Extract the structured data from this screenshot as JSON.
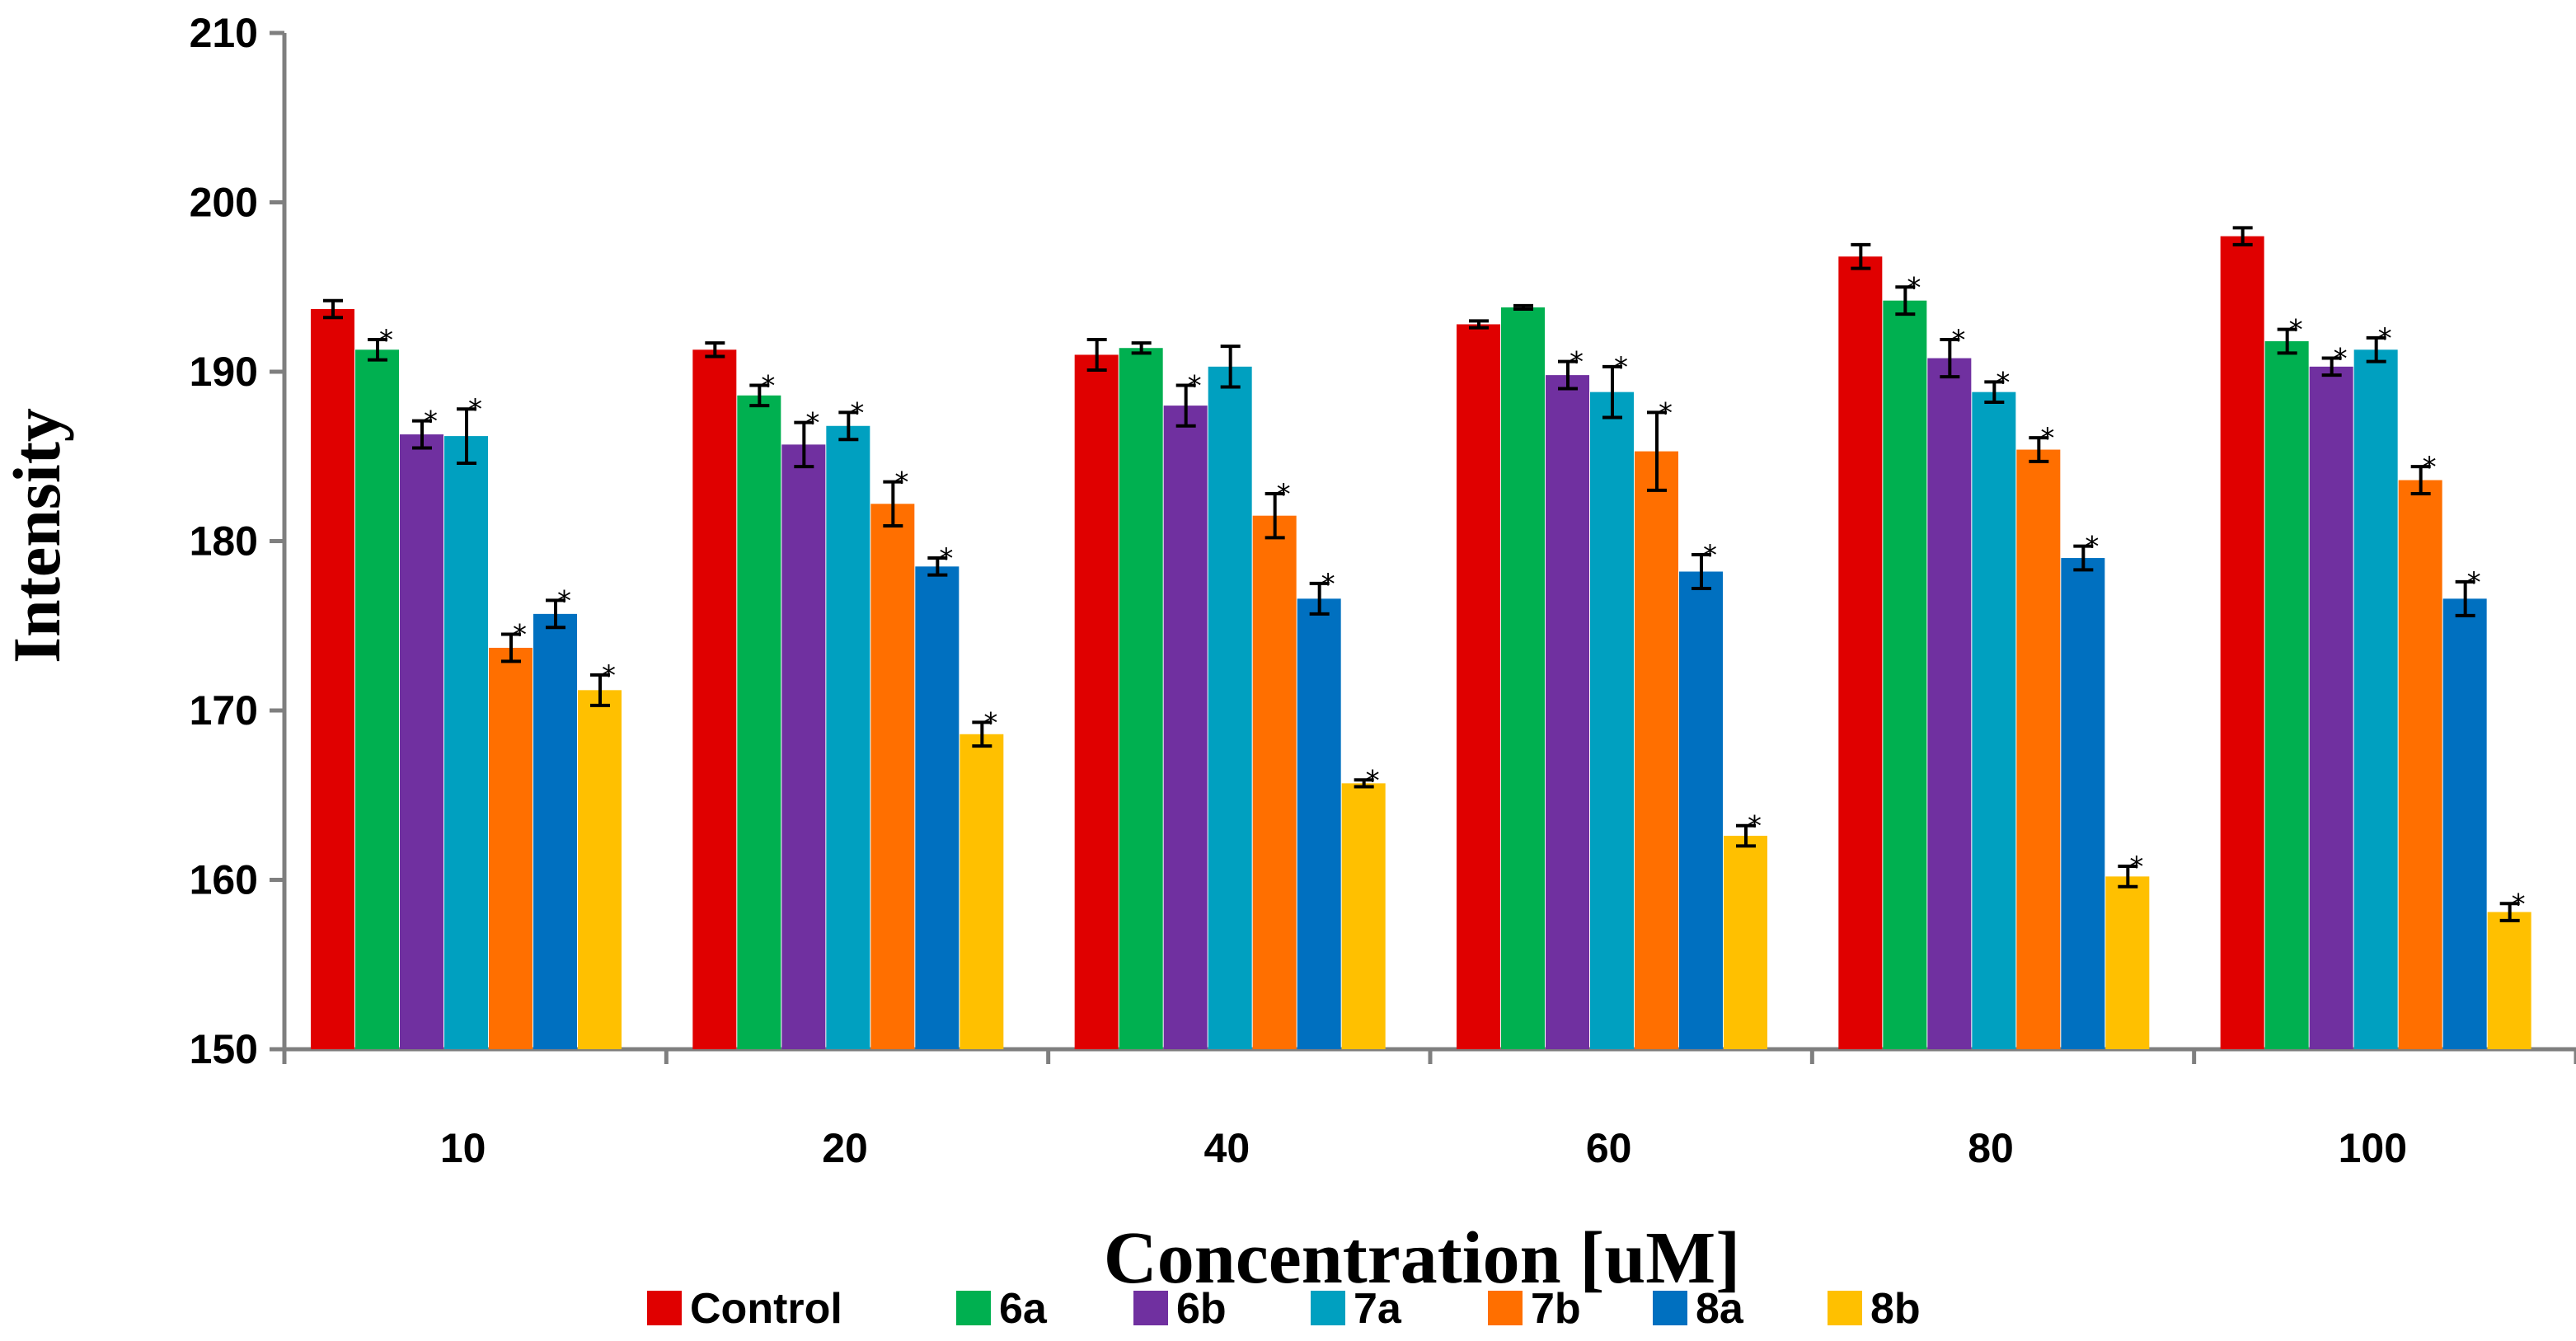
{
  "chart_data": {
    "type": "bar",
    "title": "",
    "xlabel": "Concentration [uM]",
    "ylabel": "Intensity",
    "ylim": [
      150,
      210
    ],
    "yticks": [
      "150",
      "160",
      "170",
      "180",
      "190",
      "200",
      "210"
    ],
    "categories": [
      "10",
      "20",
      "40",
      "60",
      "80",
      "100"
    ],
    "significance_marker": "*",
    "legend_position": "bottom",
    "series": [
      {
        "name": "Control",
        "color": "#e00000",
        "values": [
          193.7,
          191.3,
          191.0,
          192.8,
          196.8,
          198.0
        ],
        "errors": [
          0.5,
          0.4,
          0.9,
          0.2,
          0.7,
          0.5
        ],
        "significant": [
          false,
          false,
          false,
          false,
          false,
          false
        ]
      },
      {
        "name": "6a",
        "color": "#00b050",
        "values": [
          191.3,
          188.6,
          191.4,
          193.8,
          194.2,
          191.8
        ],
        "errors": [
          0.6,
          0.6,
          0.3,
          0.1,
          0.8,
          0.7
        ],
        "significant": [
          true,
          true,
          false,
          false,
          true,
          true
        ]
      },
      {
        "name": "6b",
        "color": "#7030a0",
        "values": [
          186.3,
          185.7,
          188.0,
          189.8,
          190.8,
          190.3
        ],
        "errors": [
          0.8,
          1.3,
          1.2,
          0.8,
          1.1,
          0.5
        ],
        "significant": [
          true,
          true,
          true,
          true,
          true,
          true
        ]
      },
      {
        "name": "7a",
        "color": "#00a0c0",
        "values": [
          186.2,
          186.8,
          190.3,
          188.8,
          188.8,
          191.3
        ],
        "errors": [
          1.6,
          0.8,
          1.2,
          1.5,
          0.6,
          0.7
        ],
        "significant": [
          true,
          true,
          false,
          true,
          true,
          true
        ]
      },
      {
        "name": "7b",
        "color": "#ff6f00",
        "values": [
          173.7,
          182.2,
          181.5,
          185.3,
          185.4,
          183.6
        ],
        "errors": [
          0.8,
          1.3,
          1.3,
          2.3,
          0.7,
          0.8
        ],
        "significant": [
          true,
          true,
          true,
          true,
          true,
          true
        ]
      },
      {
        "name": "8a",
        "color": "#0070c0",
        "values": [
          175.7,
          178.5,
          176.6,
          178.2,
          179.0,
          176.6
        ],
        "errors": [
          0.8,
          0.5,
          0.9,
          1.0,
          0.7,
          1.0
        ],
        "significant": [
          true,
          true,
          true,
          true,
          true,
          true
        ]
      },
      {
        "name": "8b",
        "color": "#ffc000",
        "values": [
          171.2,
          168.6,
          165.7,
          162.6,
          160.2,
          158.1
        ],
        "errors": [
          0.9,
          0.7,
          0.2,
          0.6,
          0.6,
          0.5
        ],
        "significant": [
          true,
          true,
          true,
          true,
          true,
          true
        ]
      }
    ]
  }
}
